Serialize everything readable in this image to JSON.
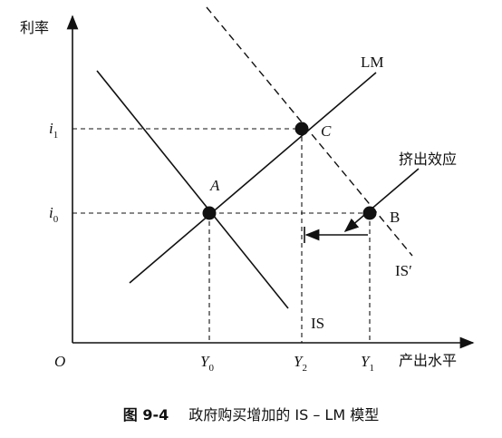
{
  "axes": {
    "y_label": "利率",
    "x_label": "产出水平",
    "origin": "O"
  },
  "curves": {
    "lm": "LM",
    "is": "IS",
    "is_shifted": "IS′"
  },
  "points": {
    "a": "A",
    "b": "B",
    "c": "C"
  },
  "rates": [
    {
      "symbol": "i",
      "sub": "1"
    },
    {
      "symbol": "i",
      "sub": "0"
    }
  ],
  "outputs": [
    {
      "symbol": "Y",
      "sub": "0"
    },
    {
      "symbol": "Y",
      "sub": "2"
    },
    {
      "symbol": "Y",
      "sub": "1"
    }
  ],
  "annotation": "挤出效应",
  "caption": {
    "figure": "图 9-4",
    "title": "政府购买增加的 IS – LM 模型"
  }
}
